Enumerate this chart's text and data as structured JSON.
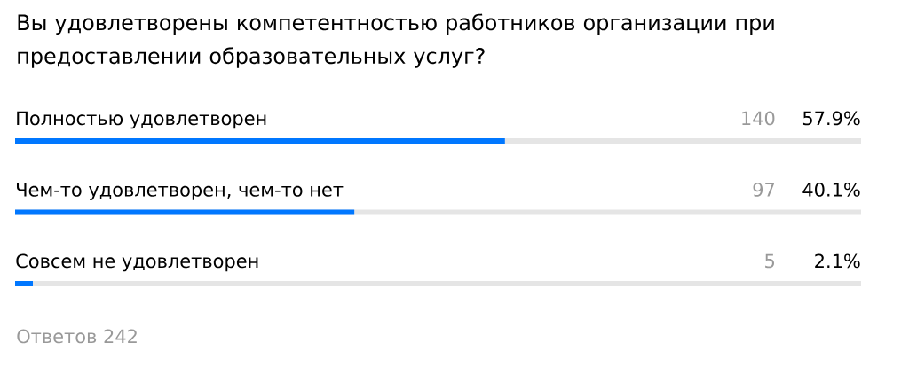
{
  "chart_data": {
    "type": "bar",
    "orientation": "horizontal",
    "title": "Вы удовлетворены компетентностью работников организации при предоставлении образовательных услуг?",
    "categories": [
      "Полностью удовлетворен",
      "Чем-то удовлетворен, чем-то нет",
      "Совсем не удовлетворен"
    ],
    "values": [
      57.9,
      40.1,
      2.1
    ],
    "color": "#0077ff",
    "xlim": [
      0,
      100
    ],
    "value_labels": [
      "57.9%",
      "40.1%",
      "2.1%"
    ],
    "annotations": [
      "140",
      "97",
      "5",
      "Ответов 242"
    ]
  }
}
